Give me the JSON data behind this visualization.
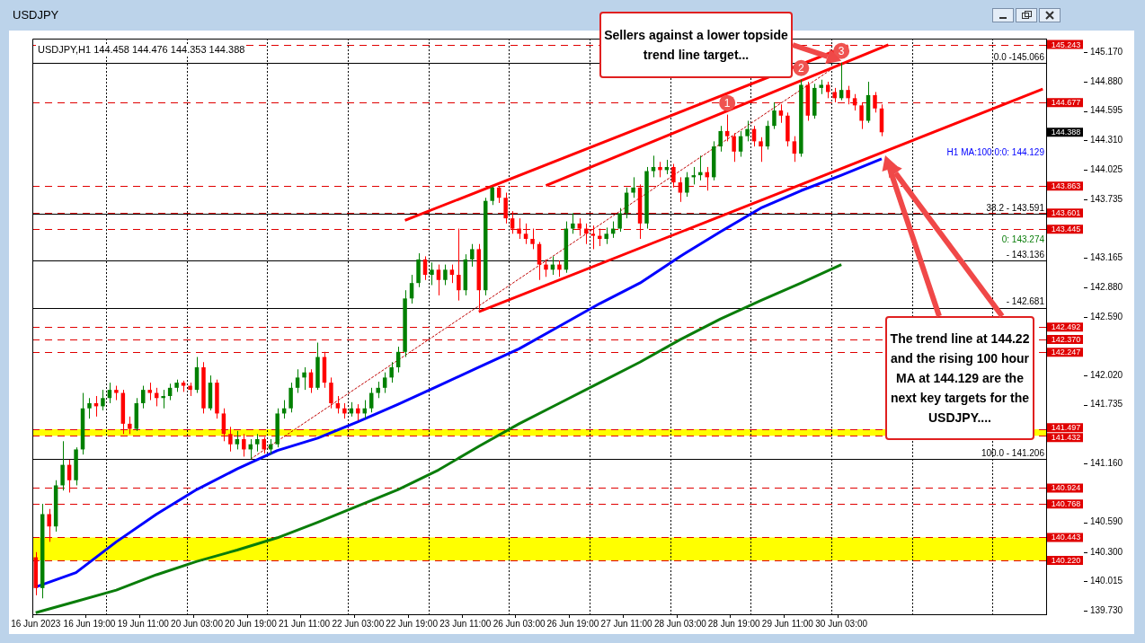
{
  "chart_data": {
    "type": "candlestick",
    "title": "USDJPY",
    "subtitle": "USDJPY,H1  144.458 144.476 144.353 144.388",
    "categories": [
      "16 Jun 2023",
      null,
      null,
      null,
      null,
      null,
      null,
      null,
      "16 Jun 19:00",
      null,
      null,
      null,
      null,
      null,
      null,
      null,
      "19 Jun 11:00",
      null,
      null,
      null,
      null,
      null,
      null,
      null,
      "20 Jun 03:00",
      null,
      null,
      null,
      null,
      null,
      null,
      null,
      "20 Jun 19:00",
      null,
      null,
      null,
      null,
      null,
      null,
      null,
      "21 Jun 11:00",
      null,
      null,
      null,
      null,
      null,
      null,
      null,
      "22 Jun 03:00",
      null,
      null,
      null,
      null,
      null,
      null,
      null,
      "22 Jun 19:00",
      null,
      null,
      null,
      null,
      null,
      null,
      null,
      "23 Jun 11:00",
      null,
      null,
      null,
      null,
      null,
      null,
      null,
      "26 Jun 03:00",
      null,
      null,
      null,
      null,
      null,
      null,
      null,
      "26 Jun 19:00",
      null,
      null,
      null,
      null,
      null,
      null,
      null,
      "27 Jun 11:00",
      null,
      null,
      null,
      null,
      null,
      null,
      null,
      "28 Jun 03:00",
      null,
      null,
      null,
      null,
      null,
      null,
      null,
      "28 Jun 19:00",
      null,
      null,
      null,
      null,
      null,
      null,
      null,
      "29 Jun 11:00",
      null,
      null,
      null,
      null,
      null,
      null,
      null,
      "30 Jun 03:00",
      null,
      null,
      null,
      null,
      null,
      null,
      null,
      null,
      null,
      null,
      null,
      null,
      null,
      null,
      null,
      null,
      null,
      null,
      null,
      null,
      null,
      null,
      null,
      null,
      null,
      null,
      null,
      null,
      null,
      null
    ],
    "ohlc": [
      [
        140.25,
        140.3,
        139.88,
        139.95
      ],
      [
        139.95,
        140.77,
        139.85,
        140.67
      ],
      [
        140.67,
        140.72,
        140.4,
        140.55
      ],
      [
        140.55,
        141.0,
        140.5,
        140.95
      ],
      [
        140.95,
        141.38,
        140.9,
        141.15
      ],
      [
        141.15,
        141.2,
        140.88,
        141.0
      ],
      [
        141.0,
        141.32,
        140.95,
        141.3
      ],
      [
        141.3,
        141.85,
        141.25,
        141.7
      ],
      [
        141.7,
        141.8,
        141.6,
        141.75
      ],
      [
        141.75,
        141.82,
        141.62,
        141.72
      ],
      [
        141.72,
        141.88,
        141.68,
        141.8
      ],
      [
        141.8,
        141.95,
        141.75,
        141.88
      ],
      [
        141.88,
        141.92,
        141.78,
        141.85
      ],
      [
        141.85,
        141.88,
        141.45,
        141.55
      ],
      [
        141.55,
        141.62,
        141.45,
        141.5
      ],
      [
        141.5,
        141.8,
        141.48,
        141.75
      ],
      [
        141.75,
        141.92,
        141.7,
        141.88
      ],
      [
        141.88,
        141.95,
        141.78,
        141.85
      ],
      [
        141.85,
        141.9,
        141.72,
        141.8
      ],
      [
        141.8,
        141.88,
        141.7,
        141.82
      ],
      [
        141.82,
        141.94,
        141.78,
        141.9
      ],
      [
        141.9,
        141.98,
        141.86,
        141.95
      ],
      [
        141.95,
        141.97,
        141.86,
        141.92
      ],
      [
        141.92,
        141.95,
        141.82,
        141.88
      ],
      [
        141.88,
        142.2,
        141.85,
        142.1
      ],
      [
        142.1,
        142.15,
        141.65,
        141.7
      ],
      [
        141.7,
        142.02,
        141.68,
        141.95
      ],
      [
        141.95,
        141.98,
        141.6,
        141.65
      ],
      [
        141.65,
        141.7,
        141.38,
        141.45
      ],
      [
        141.45,
        141.52,
        141.28,
        141.35
      ],
      [
        141.35,
        141.48,
        141.3,
        141.4
      ],
      [
        141.4,
        141.45,
        141.23,
        141.3
      ],
      [
        141.3,
        141.4,
        141.206,
        141.35
      ],
      [
        141.35,
        141.45,
        141.28,
        141.4
      ],
      [
        141.4,
        141.42,
        141.26,
        141.3
      ],
      [
        141.3,
        141.4,
        141.25,
        141.35
      ],
      [
        141.35,
        141.7,
        141.32,
        141.65
      ],
      [
        141.65,
        141.78,
        141.6,
        141.7
      ],
      [
        141.7,
        141.95,
        141.66,
        141.9
      ],
      [
        141.9,
        142.08,
        141.85,
        142.0
      ],
      [
        142.0,
        142.1,
        141.88,
        142.05
      ],
      [
        142.05,
        142.08,
        141.85,
        141.9
      ],
      [
        141.9,
        142.34,
        141.88,
        142.2
      ],
      [
        142.2,
        142.25,
        141.9,
        141.95
      ],
      [
        141.95,
        142.0,
        141.7,
        141.75
      ],
      [
        141.75,
        141.82,
        141.65,
        141.7
      ],
      [
        141.7,
        141.75,
        141.6,
        141.65
      ],
      [
        141.65,
        141.76,
        141.62,
        141.7
      ],
      [
        141.7,
        141.74,
        141.58,
        141.65
      ],
      [
        141.65,
        141.78,
        141.6,
        141.7
      ],
      [
        141.7,
        141.9,
        141.66,
        141.85
      ],
      [
        141.85,
        141.96,
        141.8,
        141.9
      ],
      [
        141.9,
        142.05,
        141.85,
        142.0
      ],
      [
        142.0,
        142.15,
        141.95,
        142.1
      ],
      [
        142.1,
        142.3,
        142.05,
        142.25
      ],
      [
        142.25,
        142.85,
        142.2,
        142.77
      ],
      [
        142.77,
        143.0,
        142.72,
        142.92
      ],
      [
        142.92,
        143.21,
        142.88,
        143.15
      ],
      [
        143.15,
        143.18,
        142.95,
        143.0
      ],
      [
        143.0,
        143.12,
        142.9,
        143.05
      ],
      [
        143.05,
        143.1,
        142.8,
        142.95
      ],
      [
        142.95,
        143.1,
        142.9,
        143.05
      ],
      [
        143.05,
        143.1,
        142.92,
        143.0
      ],
      [
        143.0,
        143.45,
        142.75,
        142.85
      ],
      [
        142.85,
        143.2,
        142.8,
        143.15
      ],
      [
        143.15,
        143.3,
        143.08,
        143.25
      ],
      [
        143.25,
        143.3,
        142.66,
        142.85
      ],
      [
        142.85,
        143.75,
        142.8,
        143.72
      ],
      [
        143.72,
        143.86,
        143.68,
        143.85
      ],
      [
        143.85,
        143.86,
        143.7,
        143.75
      ],
      [
        143.75,
        143.8,
        143.5,
        143.55
      ],
      [
        143.55,
        143.62,
        143.4,
        143.45
      ],
      [
        143.45,
        143.55,
        143.35,
        143.4
      ],
      [
        143.4,
        143.5,
        143.3,
        143.35
      ],
      [
        143.35,
        143.45,
        143.25,
        143.3
      ],
      [
        143.3,
        143.32,
        142.95,
        143.1
      ],
      [
        143.1,
        143.15,
        142.98,
        143.05
      ],
      [
        143.05,
        143.18,
        143.0,
        143.1
      ],
      [
        143.1,
        143.14,
        142.98,
        143.05
      ],
      [
        143.05,
        143.52,
        143.02,
        143.45
      ],
      [
        143.45,
        143.6,
        143.4,
        143.5
      ],
      [
        143.5,
        143.55,
        143.38,
        143.45
      ],
      [
        143.45,
        143.5,
        143.3,
        143.4
      ],
      [
        143.4,
        143.48,
        143.25,
        143.38
      ],
      [
        143.38,
        143.45,
        143.28,
        143.35
      ],
      [
        143.35,
        143.46,
        143.3,
        143.4
      ],
      [
        143.4,
        143.52,
        143.36,
        143.45
      ],
      [
        143.45,
        143.65,
        143.42,
        143.6
      ],
      [
        143.6,
        143.85,
        143.55,
        143.8
      ],
      [
        143.8,
        143.95,
        143.75,
        143.85
      ],
      [
        143.85,
        143.88,
        143.35,
        143.5
      ],
      [
        143.5,
        144.05,
        143.45,
        144.01
      ],
      [
        144.01,
        144.16,
        143.95,
        144.05
      ],
      [
        144.05,
        144.1,
        143.95,
        144.02
      ],
      [
        144.02,
        144.12,
        143.98,
        144.05
      ],
      [
        144.05,
        144.08,
        143.85,
        143.9
      ],
      [
        143.9,
        143.95,
        143.71,
        143.8
      ],
      [
        143.8,
        144.0,
        143.76,
        143.95
      ],
      [
        143.95,
        144.05,
        143.88,
        143.97
      ],
      [
        143.97,
        144.16,
        143.92,
        144.0
      ],
      [
        144.0,
        144.05,
        143.82,
        143.95
      ],
      [
        143.95,
        144.3,
        143.92,
        144.25
      ],
      [
        144.25,
        144.45,
        144.2,
        144.4
      ],
      [
        144.4,
        144.56,
        144.3,
        144.35
      ],
      [
        144.35,
        144.38,
        144.1,
        144.2
      ],
      [
        144.2,
        144.4,
        144.15,
        144.35
      ],
      [
        144.35,
        144.5,
        144.3,
        144.42
      ],
      [
        144.42,
        144.45,
        144.25,
        144.3
      ],
      [
        144.3,
        144.34,
        144.1,
        144.25
      ],
      [
        144.25,
        144.5,
        144.22,
        144.45
      ],
      [
        144.45,
        144.68,
        144.42,
        144.6
      ],
      [
        144.6,
        144.66,
        144.48,
        144.55
      ],
      [
        144.55,
        144.58,
        144.25,
        144.3
      ],
      [
        144.3,
        144.35,
        144.1,
        144.18
      ],
      [
        144.18,
        144.9,
        144.15,
        144.85
      ],
      [
        144.85,
        144.88,
        144.5,
        144.55
      ],
      [
        144.55,
        144.86,
        144.52,
        144.82
      ],
      [
        144.82,
        144.9,
        144.76,
        144.85
      ],
      [
        144.85,
        144.88,
        144.72,
        144.78
      ],
      [
        144.78,
        144.82,
        144.68,
        144.72
      ],
      [
        144.72,
        145.066,
        144.7,
        144.8
      ],
      [
        144.8,
        144.84,
        144.66,
        144.72
      ],
      [
        144.72,
        144.76,
        144.6,
        144.65
      ],
      [
        144.65,
        144.68,
        144.42,
        144.5
      ],
      [
        144.5,
        144.88,
        144.48,
        144.75
      ],
      [
        144.75,
        144.78,
        144.58,
        144.62
      ],
      [
        144.62,
        144.66,
        144.35,
        144.388
      ],
      null,
      null,
      null,
      null,
      null,
      null,
      null,
      null,
      null,
      null,
      null,
      null,
      null,
      null,
      null,
      null,
      null,
      null,
      null,
      null,
      null,
      null,
      null,
      null
    ],
    "colors": [
      "#ff0000",
      "#008000",
      "#ff0000",
      "#008000",
      "#008000",
      "#ff0000",
      "#008000",
      "#008000",
      "#008000",
      "#ff0000",
      "#008000",
      "#008000",
      "#ff0000",
      "#ff0000",
      "#ff0000",
      "#008000",
      "#008000",
      "#ff0000",
      "#ff0000",
      "#008000",
      "#008000",
      "#008000",
      "#ff0000",
      "#ff0000",
      "#008000",
      "#ff0000",
      "#008000",
      "#ff0000",
      "#ff0000",
      "#ff0000",
      "#008000",
      "#ff0000",
      "#008000",
      "#008000",
      "#ff0000",
      "#008000",
      "#008000",
      "#008000",
      "#008000",
      "#008000",
      "#008000",
      "#ff0000",
      "#008000",
      "#ff0000",
      "#ff0000",
      "#ff0000",
      "#ff0000",
      "#008000",
      "#ff0000",
      "#008000",
      "#008000",
      "#008000",
      "#008000",
      "#008000",
      "#008000",
      "#008000",
      "#008000",
      "#008000",
      "#ff0000",
      "#008000",
      "#ff0000",
      "#008000",
      "#ff0000",
      "#ff0000",
      "#008000",
      "#008000",
      "#ff0000",
      "#008000",
      "#008000",
      "#ff0000",
      "#ff0000",
      "#ff0000",
      "#ff0000",
      "#ff0000",
      "#ff0000",
      "#ff0000",
      "#ff0000",
      "#008000",
      "#ff0000",
      "#008000",
      "#008000",
      "#ff0000",
      "#ff0000",
      "#ff0000",
      "#ff0000",
      "#008000",
      "#008000",
      "#008000",
      "#008000",
      "#008000",
      "#ff0000",
      "#008000",
      "#008000",
      "#ff0000",
      "#008000",
      "#ff0000",
      "#ff0000",
      "#008000",
      "#008000",
      "#008000",
      "#ff0000",
      "#008000",
      "#008000",
      "#ff0000",
      "#ff0000",
      "#008000",
      "#008000",
      "#ff0000",
      "#ff0000",
      "#008000",
      "#008000",
      "#ff0000",
      "#ff0000",
      "#ff0000",
      "#008000",
      "#ff0000",
      "#008000",
      "#008000",
      "#ff0000",
      "#ff0000",
      "#008000",
      "#ff0000",
      "#ff0000",
      "#ff0000",
      "#008000",
      "#ff0000",
      "#ff0000",
      null,
      null,
      null,
      null,
      null,
      null,
      null,
      null,
      null,
      null,
      null,
      null,
      null,
      null,
      null,
      null,
      null,
      null,
      null,
      null,
      null,
      null,
      null,
      null
    ],
    "series": [
      {
        "type": "line",
        "color": "#0000ff",
        "values": [
          139.96,
          null,
          null,
          null,
          null,
          null,
          140.1,
          null,
          null,
          null,
          null,
          null,
          140.4,
          null,
          null,
          null,
          null,
          null,
          140.67,
          null,
          null,
          null,
          null,
          null,
          140.91,
          null,
          null,
          null,
          null,
          null,
          141.11,
          null,
          null,
          null,
          null,
          null,
          141.29,
          null,
          null,
          null,
          null,
          null,
          141.41,
          null,
          null,
          null,
          null,
          null,
          141.57,
          null,
          null,
          null,
          null,
          null,
          141.74,
          null,
          null,
          null,
          null,
          null,
          141.92,
          null,
          null,
          null,
          null,
          null,
          142.1,
          null,
          null,
          null,
          null,
          null,
          142.28,
          null,
          null,
          null,
          null,
          null,
          142.5,
          null,
          null,
          null,
          null,
          null,
          142.72,
          null,
          null,
          null,
          null,
          null,
          142.92,
          null,
          null,
          null,
          null,
          null,
          143.18,
          null,
          null,
          null,
          null,
          null,
          143.42,
          null,
          null,
          null,
          null,
          null,
          143.65,
          null,
          null,
          null,
          null,
          null,
          143.82,
          null,
          null,
          null,
          null,
          null,
          143.97,
          null,
          null,
          null,
          null,
          null,
          144.129,
          null,
          null,
          null,
          null,
          null,
          null,
          null,
          null,
          null,
          null,
          null,
          null,
          null,
          null,
          null,
          null,
          null,
          null,
          null,
          null,
          null,
          null,
          null,
          null
        ]
      },
      {
        "type": "line",
        "color": "#0a7d0a",
        "values": [
          139.71,
          null,
          null,
          null,
          null,
          null,
          139.82,
          null,
          null,
          null,
          null,
          null,
          139.93,
          null,
          null,
          null,
          null,
          null,
          140.08,
          null,
          null,
          null,
          null,
          null,
          140.21,
          null,
          null,
          null,
          null,
          null,
          140.32,
          null,
          null,
          null,
          null,
          null,
          140.44,
          null,
          null,
          null,
          null,
          null,
          140.59,
          null,
          null,
          null,
          null,
          null,
          140.75,
          null,
          null,
          null,
          null,
          null,
          140.91,
          null,
          null,
          null,
          null,
          null,
          141.1,
          null,
          null,
          null,
          null,
          null,
          141.33,
          null,
          null,
          null,
          null,
          null,
          141.55,
          null,
          null,
          null,
          null,
          null,
          141.75,
          null,
          null,
          null,
          null,
          null,
          141.95,
          null,
          null,
          null,
          null,
          null,
          142.15,
          null,
          null,
          null,
          null,
          null,
          142.37,
          null,
          null,
          null,
          null,
          null,
          142.57,
          null,
          null,
          null,
          null,
          null,
          142.75,
          null,
          null,
          null,
          null,
          null,
          142.92,
          null,
          null,
          null,
          null,
          null,
          143.1,
          null,
          null,
          null,
          null,
          null,
          null,
          null,
          null,
          null,
          null,
          null,
          null,
          null,
          null,
          null,
          null,
          null,
          null,
          null,
          null,
          null,
          null,
          null,
          null,
          null,
          null,
          null,
          null,
          null,
          null
        ]
      },
      {
        "type": "line",
        "color": "#ff0000",
        "values": [
          null,
          null,
          null,
          null,
          null,
          null,
          null,
          null,
          null,
          null,
          null,
          null,
          null,
          null,
          null,
          null,
          null,
          null,
          null,
          null,
          null,
          null,
          null,
          null,
          null,
          null,
          null,
          null,
          null,
          null,
          null,
          null,
          null,
          null,
          null,
          null,
          null,
          null,
          null,
          null,
          null,
          null,
          null,
          null,
          null,
          null,
          null,
          null,
          null,
          null,
          null,
          null,
          null,
          null,
          null,
          143.53,
          null,
          null,
          null,
          null,
          null,
          null,
          null,
          null,
          null,
          null,
          null,
          null,
          null,
          null,
          null,
          null,
          null,
          null,
          null,
          null,
          null,
          null,
          null,
          null,
          null,
          null,
          null,
          null,
          null,
          null,
          null,
          null,
          null,
          null,
          null,
          null,
          null,
          null,
          null,
          null,
          null,
          null,
          null,
          null,
          null,
          null,
          null,
          null,
          null,
          null,
          null,
          null,
          null,
          null,
          null,
          null,
          null,
          null,
          null,
          null,
          null,
          null,
          null,
          null,
          null,
          145.23,
          null,
          null,
          null,
          null,
          null,
          null,
          null,
          null,
          null,
          null,
          null,
          null,
          null,
          null,
          null,
          null,
          null,
          null,
          null,
          null,
          null,
          null,
          null,
          null,
          null,
          null,
          null,
          null,
          null
        ]
      },
      {
        "type": "line",
        "color": "#ff0000",
        "values": [
          null,
          null,
          null,
          null,
          null,
          null,
          null,
          null,
          null,
          null,
          null,
          null,
          null,
          null,
          null,
          null,
          null,
          null,
          null,
          null,
          null,
          null,
          null,
          null,
          null,
          null,
          null,
          null,
          null,
          null,
          null,
          null,
          null,
          null,
          null,
          null,
          null,
          null,
          null,
          null,
          null,
          null,
          null,
          null,
          null,
          null,
          null,
          null,
          null,
          null,
          null,
          null,
          null,
          null,
          null,
          null,
          null,
          null,
          null,
          null,
          null,
          null,
          null,
          null,
          null,
          null,
          null,
          null,
          null,
          null,
          null,
          null,
          null,
          null,
          null,
          null,
          143.87,
          null,
          null,
          null,
          null,
          null,
          null,
          null,
          null,
          null,
          null,
          null,
          null,
          null,
          null,
          null,
          null,
          null,
          null,
          null,
          null,
          null,
          null,
          null,
          null,
          null,
          null,
          null,
          null,
          null,
          null,
          null,
          null,
          null,
          null,
          null,
          null,
          null,
          null,
          null,
          null,
          null,
          null,
          null,
          null,
          null,
          null,
          null,
          null,
          null,
          null,
          145.24,
          null,
          null,
          null,
          null,
          null,
          null,
          null,
          null,
          null,
          null,
          null,
          null,
          null,
          null,
          null,
          null,
          null,
          null,
          null,
          null,
          null,
          null,
          null
        ]
      },
      {
        "type": "line",
        "color": "#ff0000",
        "values": [
          null,
          null,
          null,
          null,
          null,
          null,
          null,
          null,
          null,
          null,
          null,
          null,
          null,
          null,
          null,
          null,
          null,
          null,
          null,
          null,
          null,
          null,
          null,
          null,
          null,
          null,
          null,
          null,
          null,
          null,
          null,
          null,
          null,
          null,
          null,
          null,
          null,
          null,
          null,
          null,
          null,
          null,
          null,
          null,
          null,
          null,
          null,
          null,
          null,
          null,
          null,
          null,
          null,
          null,
          null,
          null,
          null,
          null,
          null,
          null,
          null,
          null,
          null,
          null,
          null,
          null,
          142.64,
          null,
          null,
          null,
          null,
          null,
          null,
          null,
          null,
          null,
          null,
          null,
          null,
          null,
          null,
          null,
          null,
          null,
          null,
          null,
          null,
          null,
          null,
          null,
          null,
          null,
          null,
          null,
          null,
          null,
          null,
          null,
          null,
          null,
          null,
          null,
          null,
          null,
          null,
          null,
          null,
          null,
          null,
          null,
          null,
          null,
          null,
          null,
          null,
          null,
          null,
          null,
          null,
          null,
          null,
          null,
          null,
          null,
          null,
          null,
          null,
          null,
          null,
          null,
          null,
          null,
          null,
          null,
          null,
          null,
          null,
          null,
          null,
          null,
          null,
          null,
          null,
          null,
          null,
          null,
          null,
          null,
          null,
          null,
          144.81
        ]
      },
      {
        "type": "line",
        "color": "#c00000",
        "line_style": "dotted",
        "values": [
          null,
          null,
          null,
          null,
          null,
          null,
          null,
          null,
          null,
          null,
          null,
          null,
          null,
          null,
          null,
          null,
          null,
          null,
          null,
          null,
          null,
          null,
          null,
          null,
          null,
          null,
          null,
          null,
          null,
          null,
          null,
          null,
          141.206,
          null,
          null,
          null,
          null,
          null,
          null,
          null,
          null,
          null,
          null,
          null,
          null,
          null,
          null,
          null,
          null,
          null,
          null,
          null,
          null,
          null,
          null,
          null,
          null,
          null,
          null,
          null,
          null,
          null,
          null,
          null,
          null,
          null,
          null,
          null,
          null,
          null,
          null,
          null,
          null,
          null,
          null,
          null,
          null,
          null,
          null,
          null,
          null,
          null,
          null,
          null,
          null,
          null,
          null,
          null,
          null,
          null,
          null,
          null,
          null,
          null,
          null,
          null,
          null,
          null,
          null,
          null,
          null,
          null,
          null,
          null,
          null,
          null,
          null,
          null,
          null,
          null,
          null,
          null,
          null,
          null,
          null,
          null,
          null,
          null,
          null,
          null,
          145.066,
          null,
          null,
          null,
          null,
          null,
          null,
          null,
          null,
          null,
          null,
          null,
          null,
          null,
          null,
          null,
          null,
          null,
          null,
          null,
          null,
          null,
          null,
          null,
          null,
          null,
          null,
          null,
          null,
          null,
          null
        ]
      }
    ],
    "ylim": [
      139.695,
      145.3
    ],
    "yticks": [
      {
        "value": 145.17,
        "label": "145.170"
      },
      {
        "value": 144.88,
        "label": "144.880"
      },
      {
        "value": 144.595,
        "label": "144.595"
      },
      {
        "value": 144.31,
        "label": "144.310"
      },
      {
        "value": 144.025,
        "label": "144.025"
      },
      {
        "value": 143.735,
        "label": "143.735"
      },
      {
        "value": 143.165,
        "label": "143.165"
      },
      {
        "value": 142.88,
        "label": "142.880"
      },
      {
        "value": 142.59,
        "label": "142.590"
      },
      {
        "value": 142.02,
        "label": "142.020"
      },
      {
        "value": 141.735,
        "label": "141.735"
      },
      {
        "value": 141.16,
        "label": "141.160"
      },
      {
        "value": 140.59,
        "label": "140.590"
      },
      {
        "value": 140.3,
        "label": "140.300"
      },
      {
        "value": 140.015,
        "label": "140.015"
      },
      {
        "value": 139.73,
        "label": "139.730"
      }
    ],
    "bands": [
      {
        "axis": "y",
        "from": 141.432,
        "to": 141.497,
        "color": "#ffff00"
      },
      {
        "axis": "y",
        "from": 140.22,
        "to": 140.443,
        "color": "#ffff00"
      }
    ],
    "ref_lines": [
      {
        "axis": "y",
        "value": 145.243,
        "label": "145.243",
        "color": "#e00000",
        "line_style": "dashed"
      },
      {
        "axis": "y",
        "value": 144.677,
        "label": "144.677",
        "color": "#e00000",
        "line_style": "dashed"
      },
      {
        "axis": "y",
        "value": 143.863,
        "label": "143.863",
        "color": "#e00000",
        "line_style": "dashed"
      },
      {
        "axis": "y",
        "value": 143.601,
        "label": "143.601",
        "color": "#e00000",
        "line_style": "dashed"
      },
      {
        "axis": "y",
        "value": 143.445,
        "label": "143.445",
        "color": "#e00000",
        "line_style": "dashed"
      },
      {
        "axis": "y",
        "value": 142.492,
        "label": "142.492",
        "color": "#e00000",
        "line_style": "dashed"
      },
      {
        "axis": "y",
        "value": 142.37,
        "label": "142.370",
        "color": "#e00000",
        "line_style": "dashed"
      },
      {
        "axis": "y",
        "value": 142.247,
        "label": "142.247",
        "color": "#e00000",
        "line_style": "dashed"
      },
      {
        "axis": "y",
        "value": 141.497,
        "label": "141.497",
        "color": "#e00000",
        "line_style": "dashed"
      },
      {
        "axis": "y",
        "value": 141.432,
        "label": "141.432",
        "color": "#e00000",
        "line_style": "dashed"
      },
      {
        "axis": "y",
        "value": 140.924,
        "label": "140.924",
        "color": "#e00000",
        "line_style": "dashed"
      },
      {
        "axis": "y",
        "value": 140.768,
        "label": "140.768",
        "color": "#e00000",
        "line_style": "dashed"
      },
      {
        "axis": "y",
        "value": 140.443,
        "label": "140.443",
        "color": "#e00000",
        "line_style": "dashed"
      },
      {
        "axis": "y",
        "value": 140.22,
        "label": "140.220",
        "color": "#e00000",
        "line_style": "dashed"
      },
      {
        "axis": "y",
        "value": 145.066,
        "color": "#000000",
        "line_style": "solid"
      },
      {
        "axis": "y",
        "value": 143.591,
        "color": "#000000",
        "line_style": "solid"
      },
      {
        "axis": "y",
        "value": 143.136,
        "color": "#000000",
        "line_style": "solid"
      },
      {
        "axis": "y",
        "value": 142.681,
        "color": "#000000",
        "line_style": "solid"
      },
      {
        "axis": "y",
        "value": 141.206,
        "color": "#000000",
        "line_style": "solid"
      }
    ],
    "annotations": [
      {
        "text": "Sellers against a lower topside trend line target...",
        "y": 145.066
      },
      "The trend line at 144.22 and the rising 100 hour MA at 144.129 are the next key targets for the USDJPY....",
      {
        "text": "1",
        "y": 144.56
      },
      {
        "text": "2",
        "y": 144.9
      },
      {
        "text": "3",
        "y": 145.066
      },
      "0: 143.274",
      "H1 MA:100:0:0: 144.129",
      "144.388",
      {
        "text": "0.0 -145.066",
        "y": 145.066
      },
      {
        "text": "38.2 - 143.591",
        "y": 143.591
      },
      {
        "text": "- 143.136",
        "y": 143.136
      },
      {
        "text": "- 142.681",
        "y": 142.681
      },
      {
        "text": "100.0 - 141.206",
        "y": 141.206
      }
    ],
    "grid": "x",
    "marker": "none"
  }
}
